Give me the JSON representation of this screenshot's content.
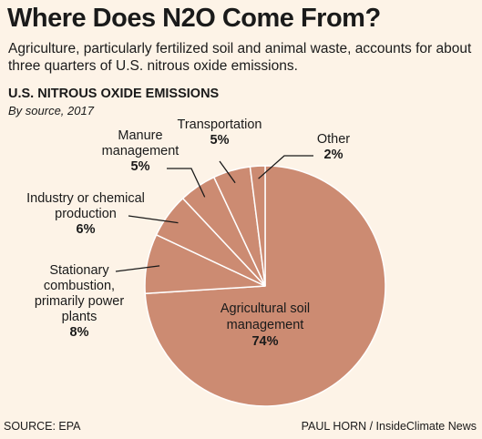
{
  "header": {
    "title": "Where Does N2O Come From?",
    "subtitle": "Agriculture, particularly fertilized soil and animal waste, accounts for about three quarters of U.S. nitrous oxide emissions."
  },
  "chart_data": {
    "type": "pie",
    "title": "U.S. NITROUS OXIDE EMISSIONS",
    "subtitle": "By source, 2017",
    "slice_color": "#cc8b72",
    "slice_edge_color": "#ffffff",
    "slices": [
      {
        "label_lines": [
          "Agricultural soil",
          "management"
        ],
        "value_label": "74%",
        "value": 74
      },
      {
        "label_lines": [
          "Stationary",
          "combustion,",
          "primarily power",
          "plants"
        ],
        "value_label": "8%",
        "value": 8
      },
      {
        "label_lines": [
          "Industry or chemical",
          "production"
        ],
        "value_label": "6%",
        "value": 6
      },
      {
        "label_lines": [
          "Manure",
          "management"
        ],
        "value_label": "5%",
        "value": 5
      },
      {
        "label_lines": [
          "Transportation"
        ],
        "value_label": "5%",
        "value": 5
      },
      {
        "label_lines": [
          "Other"
        ],
        "value_label": "2%",
        "value": 2
      }
    ]
  },
  "footer": {
    "source": "SOURCE: EPA",
    "credit": "PAUL HORN / InsideClimate News"
  }
}
